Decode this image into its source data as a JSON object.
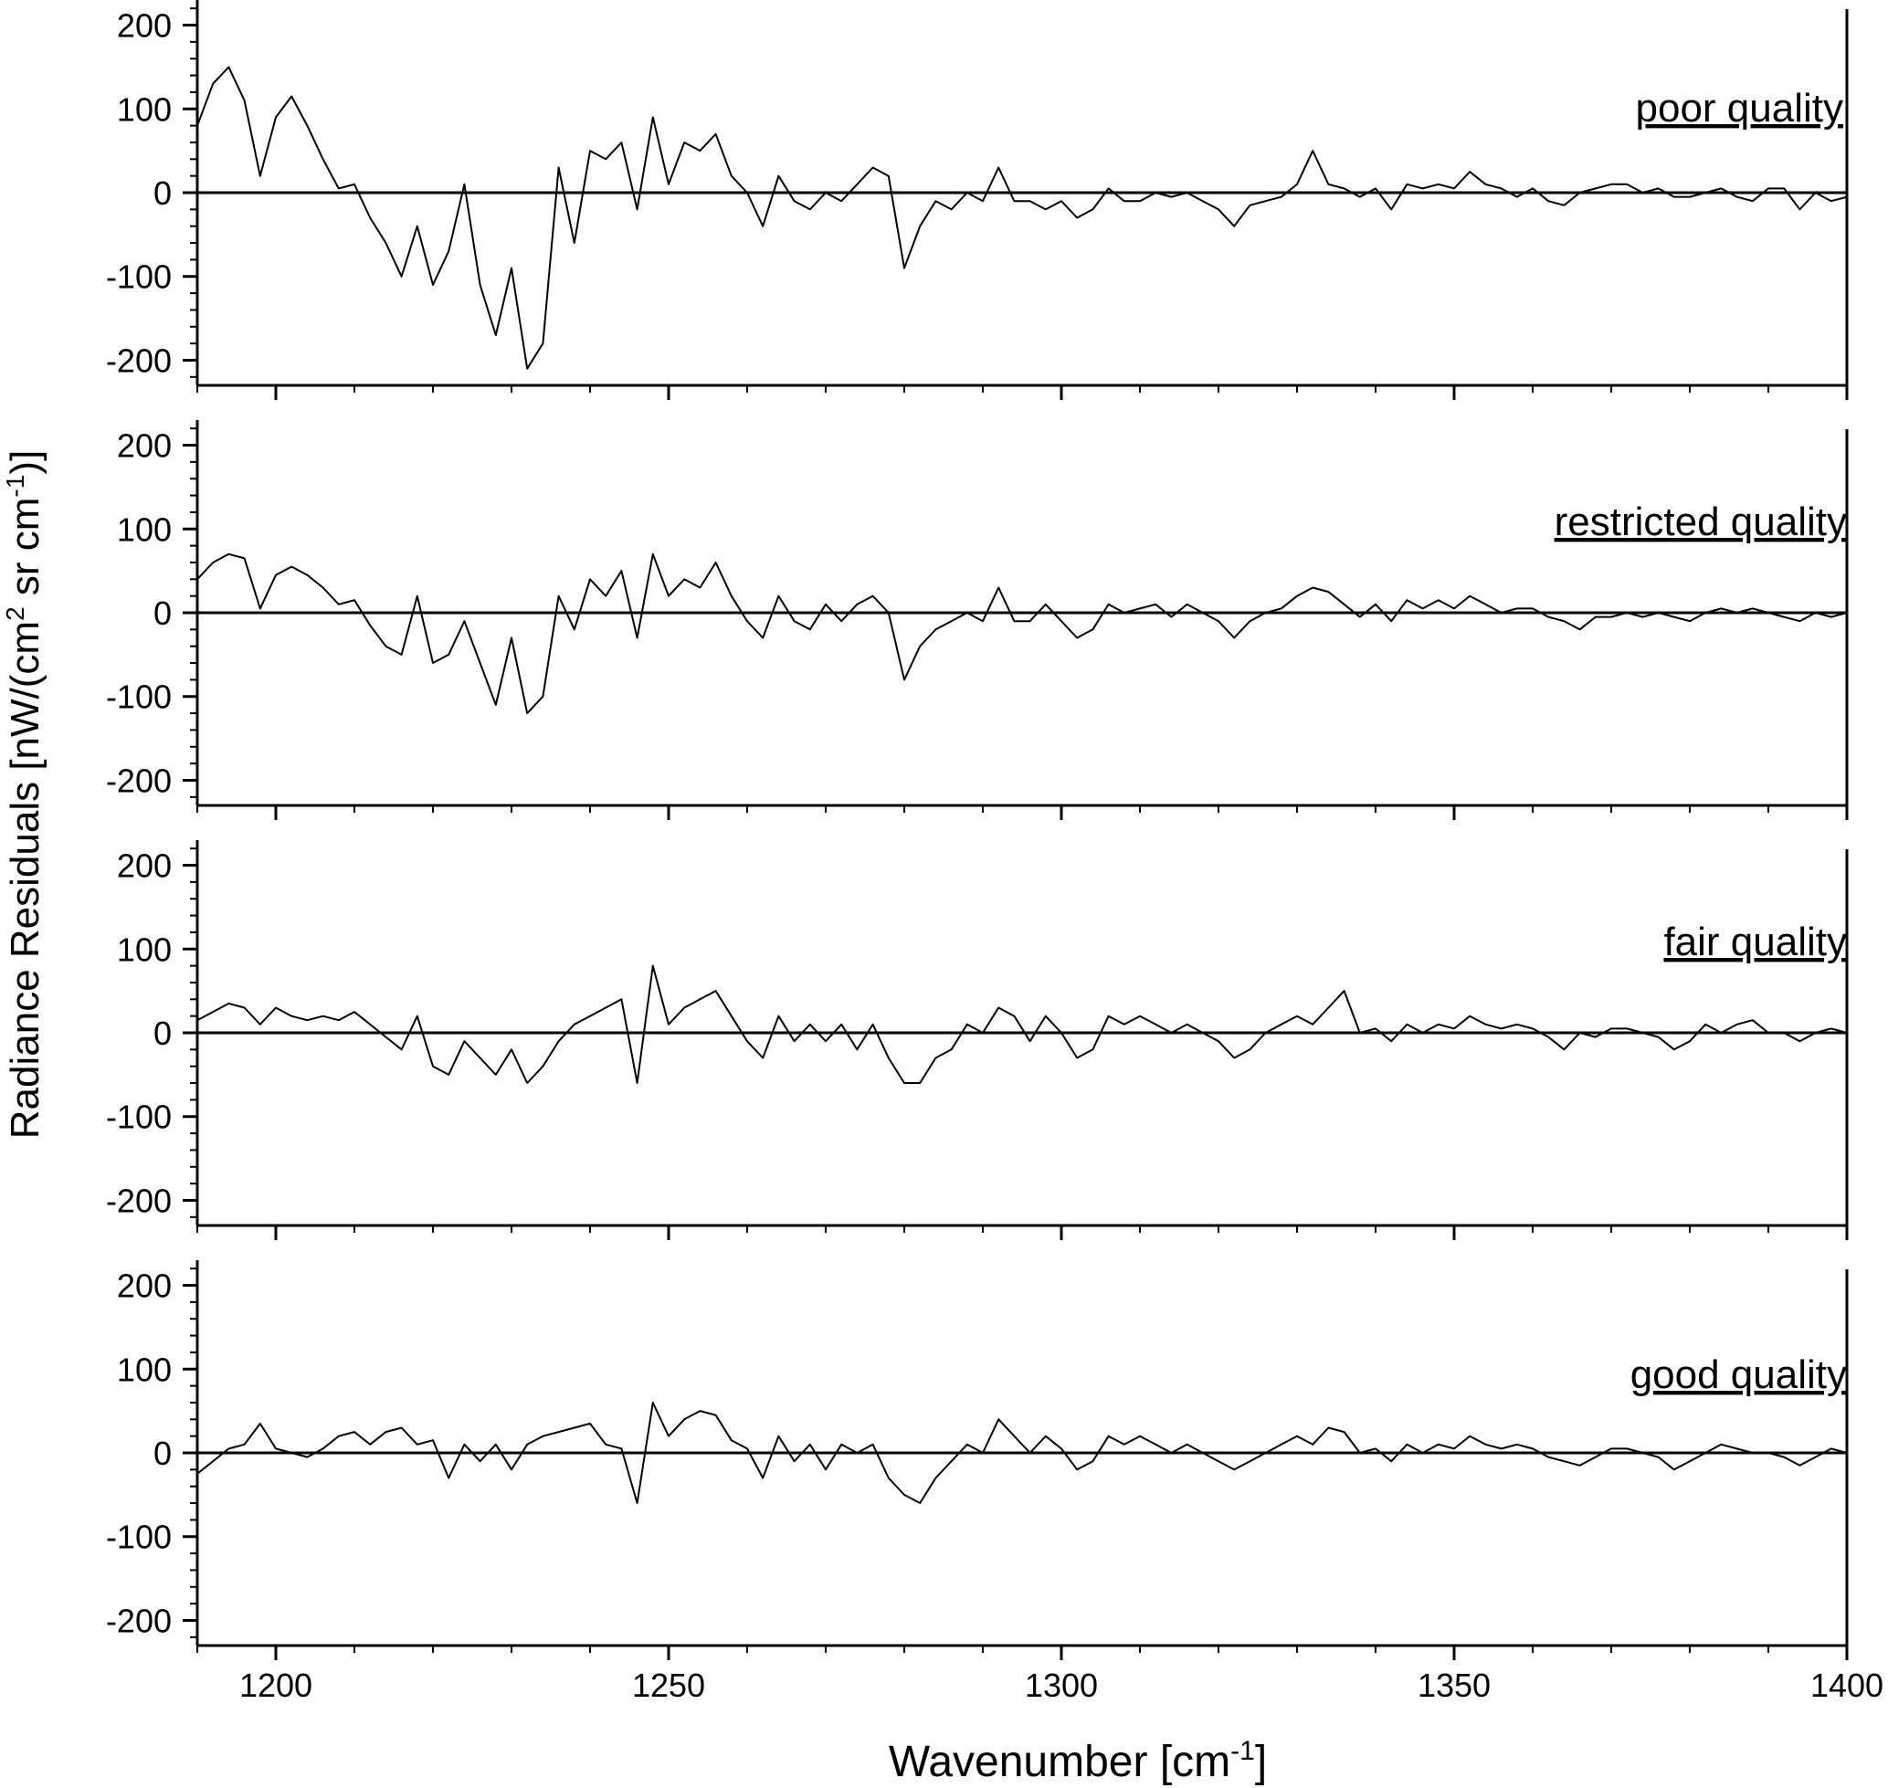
{
  "figure": {
    "ylabel_main": "Radiance Residuals [nW/(cm",
    "ylabel_sup1": "2",
    "ylabel_mid": " sr cm",
    "ylabel_sup2": "-1",
    "ylabel_end": ")]",
    "xlabel_main": "Wavenumber [cm",
    "xlabel_sup": "-1",
    "xlabel_end": "]"
  },
  "chart_data": [
    {
      "type": "line",
      "annotation": "poor quality",
      "xlim": [
        1190,
        1400
      ],
      "ylim": [
        -230,
        230
      ],
      "x_ticks": [
        1200,
        1250,
        1300,
        1350,
        1400
      ],
      "y_ticks": [
        -200,
        -100,
        0,
        100,
        200
      ],
      "grid": false,
      "zero_line": true,
      "series": [
        {
          "x": [
            1190,
            1192,
            1194,
            1196,
            1198,
            1200,
            1202,
            1204,
            1206,
            1208,
            1210,
            1212,
            1214,
            1216,
            1218,
            1220,
            1222,
            1224,
            1226,
            1228,
            1230,
            1232,
            1234,
            1236,
            1238,
            1240,
            1242,
            1244,
            1246,
            1248,
            1250,
            1252,
            1254,
            1256,
            1258,
            1260,
            1262,
            1264,
            1266,
            1268,
            1270,
            1272,
            1274,
            1276,
            1278,
            1280,
            1282,
            1284,
            1286,
            1288,
            1290,
            1292,
            1294,
            1296,
            1298,
            1300,
            1302,
            1304,
            1306,
            1308,
            1310,
            1312,
            1314,
            1316,
            1318,
            1320,
            1322,
            1324,
            1326,
            1328,
            1330,
            1332,
            1334,
            1336,
            1338,
            1340,
            1342,
            1344,
            1346,
            1348,
            1350,
            1352,
            1354,
            1356,
            1358,
            1360,
            1362,
            1364,
            1366,
            1368,
            1370,
            1372,
            1374,
            1376,
            1378,
            1380,
            1382,
            1384,
            1386,
            1388,
            1390,
            1392,
            1394,
            1396,
            1398,
            1400
          ],
          "y": [
            80,
            130,
            150,
            110,
            20,
            90,
            115,
            80,
            40,
            5,
            10,
            -30,
            -60,
            -100,
            -40,
            -110,
            -70,
            10,
            -110,
            -170,
            -90,
            -210,
            -180,
            30,
            -60,
            50,
            40,
            60,
            -20,
            90,
            10,
            60,
            50,
            70,
            20,
            0,
            -40,
            20,
            -10,
            -20,
            0,
            -10,
            10,
            30,
            20,
            -90,
            -40,
            -10,
            -20,
            0,
            -10,
            30,
            -10,
            -10,
            -20,
            -10,
            -30,
            -20,
            5,
            -10,
            -10,
            0,
            -5,
            0,
            -10,
            -20,
            -40,
            -15,
            -10,
            -5,
            10,
            50,
            10,
            5,
            -5,
            5,
            -20,
            10,
            5,
            10,
            5,
            25,
            10,
            5,
            -5,
            5,
            -10,
            -15,
            0,
            5,
            10,
            10,
            0,
            5,
            -5,
            -5,
            0,
            5,
            -5,
            -10,
            5,
            5,
            -20,
            0,
            -10,
            -5
          ]
        }
      ]
    },
    {
      "type": "line",
      "annotation": "restricted quality",
      "xlim": [
        1190,
        1400
      ],
      "ylim": [
        -230,
        230
      ],
      "x_ticks": [
        1200,
        1250,
        1300,
        1350,
        1400
      ],
      "y_ticks": [
        -200,
        -100,
        0,
        100,
        200
      ],
      "grid": false,
      "zero_line": true,
      "series": [
        {
          "x": [
            1190,
            1192,
            1194,
            1196,
            1198,
            1200,
            1202,
            1204,
            1206,
            1208,
            1210,
            1212,
            1214,
            1216,
            1218,
            1220,
            1222,
            1224,
            1226,
            1228,
            1230,
            1232,
            1234,
            1236,
            1238,
            1240,
            1242,
            1244,
            1246,
            1248,
            1250,
            1252,
            1254,
            1256,
            1258,
            1260,
            1262,
            1264,
            1266,
            1268,
            1270,
            1272,
            1274,
            1276,
            1278,
            1280,
            1282,
            1284,
            1286,
            1288,
            1290,
            1292,
            1294,
            1296,
            1298,
            1300,
            1302,
            1304,
            1306,
            1308,
            1310,
            1312,
            1314,
            1316,
            1318,
            1320,
            1322,
            1324,
            1326,
            1328,
            1330,
            1332,
            1334,
            1336,
            1338,
            1340,
            1342,
            1344,
            1346,
            1348,
            1350,
            1352,
            1354,
            1356,
            1358,
            1360,
            1362,
            1364,
            1366,
            1368,
            1370,
            1372,
            1374,
            1376,
            1378,
            1380,
            1382,
            1384,
            1386,
            1388,
            1390,
            1392,
            1394,
            1396,
            1398,
            1400
          ],
          "y": [
            40,
            60,
            70,
            65,
            5,
            45,
            55,
            45,
            30,
            10,
            15,
            -15,
            -40,
            -50,
            20,
            -60,
            -50,
            -10,
            -60,
            -110,
            -30,
            -120,
            -100,
            20,
            -20,
            40,
            20,
            50,
            -30,
            70,
            20,
            40,
            30,
            60,
            20,
            -10,
            -30,
            20,
            -10,
            -20,
            10,
            -10,
            10,
            20,
            0,
            -80,
            -40,
            -20,
            -10,
            0,
            -10,
            30,
            -10,
            -10,
            10,
            -10,
            -30,
            -20,
            10,
            0,
            5,
            10,
            -5,
            10,
            0,
            -10,
            -30,
            -10,
            0,
            5,
            20,
            30,
            25,
            10,
            -5,
            10,
            -10,
            15,
            5,
            15,
            5,
            20,
            10,
            0,
            5,
            5,
            -5,
            -10,
            -20,
            -5,
            -5,
            0,
            -5,
            0,
            -5,
            -10,
            0,
            5,
            0,
            5,
            0,
            -5,
            -10,
            0,
            -5,
            0
          ]
        }
      ]
    },
    {
      "type": "line",
      "annotation": "fair quality",
      "xlim": [
        1190,
        1400
      ],
      "ylim": [
        -230,
        230
      ],
      "x_ticks": [
        1200,
        1250,
        1300,
        1350,
        1400
      ],
      "y_ticks": [
        -200,
        -100,
        0,
        100,
        200
      ],
      "grid": false,
      "zero_line": true,
      "series": [
        {
          "x": [
            1190,
            1192,
            1194,
            1196,
            1198,
            1200,
            1202,
            1204,
            1206,
            1208,
            1210,
            1212,
            1214,
            1216,
            1218,
            1220,
            1222,
            1224,
            1226,
            1228,
            1230,
            1232,
            1234,
            1236,
            1238,
            1240,
            1242,
            1244,
            1246,
            1248,
            1250,
            1252,
            1254,
            1256,
            1258,
            1260,
            1262,
            1264,
            1266,
            1268,
            1270,
            1272,
            1274,
            1276,
            1278,
            1280,
            1282,
            1284,
            1286,
            1288,
            1290,
            1292,
            1294,
            1296,
            1298,
            1300,
            1302,
            1304,
            1306,
            1308,
            1310,
            1312,
            1314,
            1316,
            1318,
            1320,
            1322,
            1324,
            1326,
            1328,
            1330,
            1332,
            1334,
            1336,
            1338,
            1340,
            1342,
            1344,
            1346,
            1348,
            1350,
            1352,
            1354,
            1356,
            1358,
            1360,
            1362,
            1364,
            1366,
            1368,
            1370,
            1372,
            1374,
            1376,
            1378,
            1380,
            1382,
            1384,
            1386,
            1388,
            1390,
            1392,
            1394,
            1396,
            1398,
            1400
          ],
          "y": [
            15,
            25,
            35,
            30,
            10,
            30,
            20,
            15,
            20,
            15,
            25,
            10,
            -5,
            -20,
            20,
            -40,
            -50,
            -10,
            -30,
            -50,
            -20,
            -60,
            -40,
            -10,
            10,
            20,
            30,
            40,
            -60,
            80,
            10,
            30,
            40,
            50,
            20,
            -10,
            -30,
            20,
            -10,
            10,
            -10,
            10,
            -20,
            10,
            -30,
            -60,
            -60,
            -30,
            -20,
            10,
            0,
            30,
            20,
            -10,
            20,
            0,
            -30,
            -20,
            20,
            10,
            20,
            10,
            0,
            10,
            0,
            -10,
            -30,
            -20,
            0,
            10,
            20,
            10,
            30,
            50,
            0,
            5,
            -10,
            10,
            0,
            10,
            5,
            20,
            10,
            5,
            10,
            5,
            -5,
            -20,
            0,
            -5,
            5,
            5,
            0,
            -5,
            -20,
            -10,
            10,
            0,
            10,
            15,
            0,
            0,
            -10,
            0,
            5,
            0
          ]
        }
      ]
    },
    {
      "type": "line",
      "annotation": "good quality",
      "xlim": [
        1190,
        1400
      ],
      "ylim": [
        -230,
        230
      ],
      "x_ticks": [
        1200,
        1250,
        1300,
        1350,
        1400
      ],
      "y_ticks": [
        -200,
        -100,
        0,
        100,
        200
      ],
      "grid": false,
      "zero_line": true,
      "series": [
        {
          "x": [
            1190,
            1192,
            1194,
            1196,
            1198,
            1200,
            1202,
            1204,
            1206,
            1208,
            1210,
            1212,
            1214,
            1216,
            1218,
            1220,
            1222,
            1224,
            1226,
            1228,
            1230,
            1232,
            1234,
            1236,
            1238,
            1240,
            1242,
            1244,
            1246,
            1248,
            1250,
            1252,
            1254,
            1256,
            1258,
            1260,
            1262,
            1264,
            1266,
            1268,
            1270,
            1272,
            1274,
            1276,
            1278,
            1280,
            1282,
            1284,
            1286,
            1288,
            1290,
            1292,
            1294,
            1296,
            1298,
            1300,
            1302,
            1304,
            1306,
            1308,
            1310,
            1312,
            1314,
            1316,
            1318,
            1320,
            1322,
            1324,
            1326,
            1328,
            1330,
            1332,
            1334,
            1336,
            1338,
            1340,
            1342,
            1344,
            1346,
            1348,
            1350,
            1352,
            1354,
            1356,
            1358,
            1360,
            1362,
            1364,
            1366,
            1368,
            1370,
            1372,
            1374,
            1376,
            1378,
            1380,
            1382,
            1384,
            1386,
            1388,
            1390,
            1392,
            1394,
            1396,
            1398,
            1400
          ],
          "y": [
            -25,
            -10,
            5,
            10,
            35,
            5,
            0,
            -5,
            5,
            20,
            25,
            10,
            25,
            30,
            10,
            15,
            -30,
            10,
            -10,
            10,
            -20,
            10,
            20,
            25,
            30,
            35,
            10,
            5,
            -60,
            60,
            20,
            40,
            50,
            45,
            15,
            5,
            -30,
            20,
            -10,
            10,
            -20,
            10,
            0,
            10,
            -30,
            -50,
            -60,
            -30,
            -10,
            10,
            0,
            40,
            20,
            0,
            20,
            5,
            -20,
            -10,
            20,
            10,
            20,
            10,
            0,
            10,
            0,
            -10,
            -20,
            -10,
            0,
            10,
            20,
            10,
            30,
            25,
            0,
            5,
            -10,
            10,
            0,
            10,
            5,
            20,
            10,
            5,
            10,
            5,
            -5,
            -10,
            -15,
            -5,
            5,
            5,
            0,
            -5,
            -20,
            -10,
            0,
            10,
            5,
            0,
            0,
            -5,
            -15,
            -5,
            5,
            0
          ]
        }
      ]
    }
  ]
}
